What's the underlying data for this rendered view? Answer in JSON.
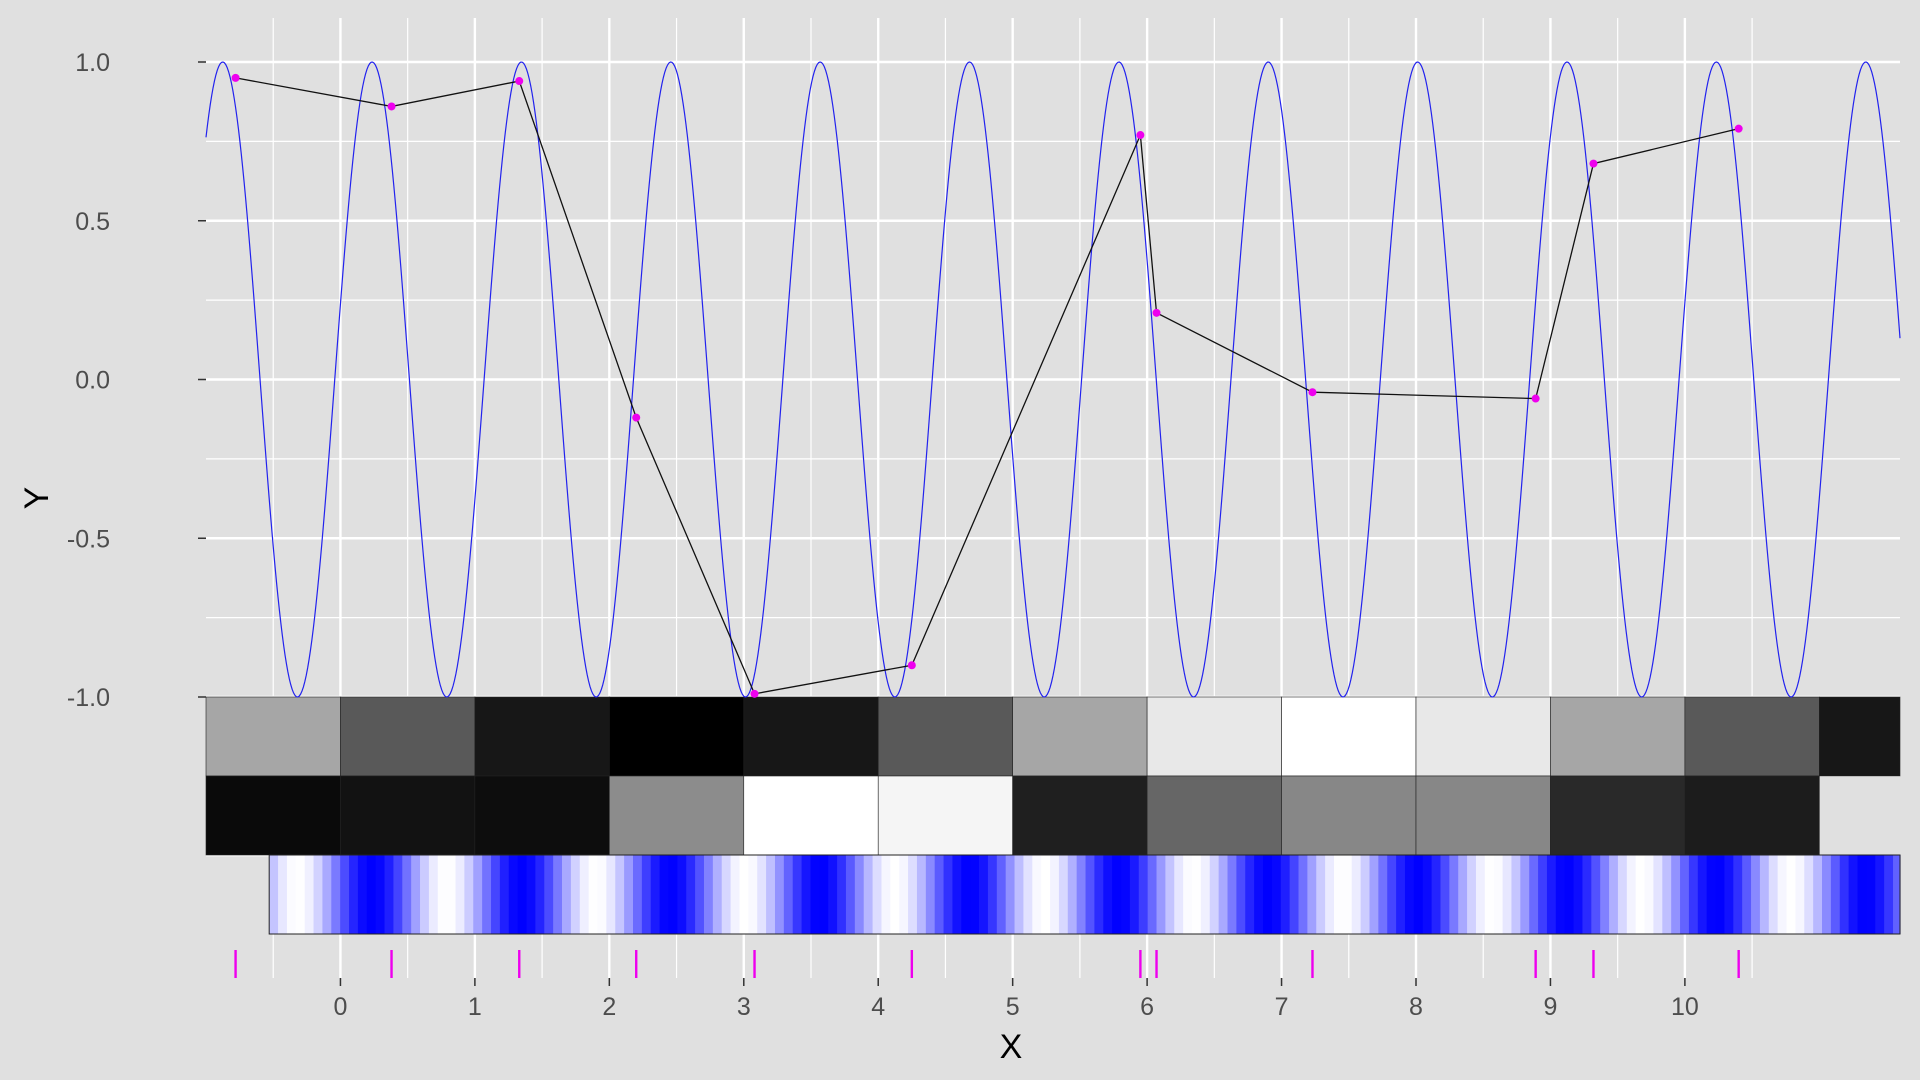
{
  "chart_data": {
    "type": "line",
    "title": "",
    "xlabel": "X",
    "ylabel": "Y",
    "xlim": [
      -1.0,
      11.6
    ],
    "ylim": [
      -1.0,
      1.0
    ],
    "x_ticks": [
      "0",
      "1",
      "2",
      "3",
      "4",
      "5",
      "6",
      "7",
      "8",
      "9",
      "10"
    ],
    "y_ticks": [
      "1.0",
      "0.5",
      "0.0",
      "-0.5",
      "-1.0"
    ],
    "grid": true,
    "legend": "none",
    "colors": {
      "panel": "#e0e0e0",
      "grid": "#ffffff",
      "sine": "#2222ee",
      "points": "#ee00ee",
      "path": "#111111",
      "rug": "#ee00ee",
      "tick_text": "#4d4d4d",
      "axis_title": "#000000"
    },
    "series": [
      {
        "kind": "function",
        "formula": "sin(2*pi*x/1.111 + 0.24)",
        "period": 1.111,
        "phase": 0.24,
        "x_range": [
          -1.0,
          11.6
        ]
      },
      {
        "kind": "points",
        "x": [
          -0.78,
          0.38,
          1.33,
          2.2,
          3.08,
          4.25,
          5.95,
          6.07,
          7.23,
          8.89,
          9.32,
          10.4
        ],
        "y": [
          0.95,
          0.86,
          0.94,
          -0.12,
          -0.99,
          -0.9,
          0.77,
          0.21,
          -0.04,
          -0.06,
          0.68,
          0.79
        ]
      }
    ],
    "tile_rows": [
      {
        "x_start": -1.0,
        "tile_width": 1.0,
        "gray_values": [
          0.65,
          0.35,
          0.09,
          0.0,
          0.09,
          0.35,
          0.65,
          0.91,
          1.0,
          0.91,
          0.65,
          0.35,
          0.09
        ]
      },
      {
        "x_start": -1.0,
        "tile_width": 1.0,
        "gray_values": [
          0.04,
          0.07,
          0.05,
          0.55,
          1.0,
          0.96,
          0.12,
          0.4,
          0.53,
          0.53,
          0.16,
          0.11
        ]
      }
    ],
    "gradient_strip": {
      "x_start": -0.53,
      "x_end": 11.6,
      "band_width": 0.066,
      "period": 1.111,
      "phase": 0.24,
      "color_low": "#ffffff",
      "color_high": "#0000ff"
    },
    "rug_x": [
      -0.78,
      0.38,
      1.33,
      2.2,
      3.08,
      4.25,
      5.95,
      6.07,
      7.23,
      8.89,
      9.32,
      10.4
    ]
  }
}
